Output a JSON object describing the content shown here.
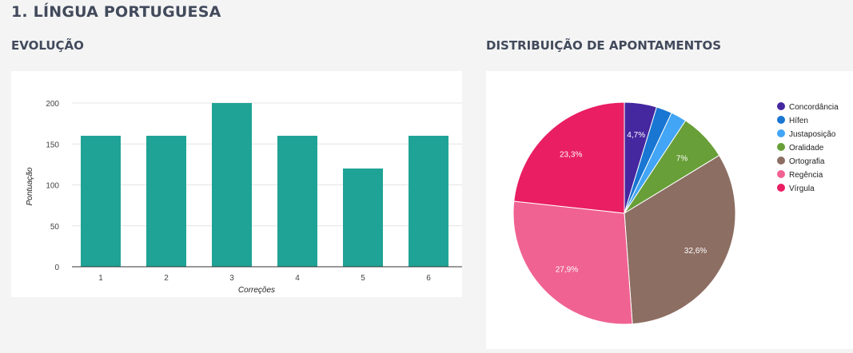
{
  "section": {
    "title": "1. LÍNGUA PORTUGUESA"
  },
  "evolucao": {
    "title": "EVOLUÇÃO"
  },
  "distribuicao": {
    "title": "DISTRIBUIÇÃO DE APONTAMENTOS"
  },
  "chart_data": [
    {
      "type": "bar",
      "categories": [
        "1",
        "2",
        "3",
        "4",
        "5",
        "6"
      ],
      "values": [
        160,
        160,
        200,
        160,
        120,
        160
      ],
      "xlabel": "Correções",
      "ylabel": "Pontuação",
      "ylim": [
        0,
        200
      ],
      "yticks": [
        0,
        50,
        100,
        150,
        200
      ],
      "grid": true,
      "color": "#1fa396"
    },
    {
      "type": "pie",
      "legend_position": "right",
      "slices": [
        {
          "label": "Concordância",
          "value": 4.7,
          "color": "#4527a0",
          "display": "4,7%"
        },
        {
          "label": "Hífen",
          "value": 2.3,
          "color": "#1976d2",
          "display": ""
        },
        {
          "label": "Justaposição",
          "value": 2.3,
          "color": "#42a5f5",
          "display": ""
        },
        {
          "label": "Oralidade",
          "value": 7.0,
          "color": "#689f38",
          "display": "7%"
        },
        {
          "label": "Ortografia",
          "value": 32.6,
          "color": "#8d6e63",
          "display": "32,6%"
        },
        {
          "label": "Regência",
          "value": 27.9,
          "color": "#f06292",
          "display": "27,9%"
        },
        {
          "label": "Vírgula",
          "value": 23.3,
          "color": "#e91e63",
          "display": "23,3%"
        }
      ]
    }
  ]
}
